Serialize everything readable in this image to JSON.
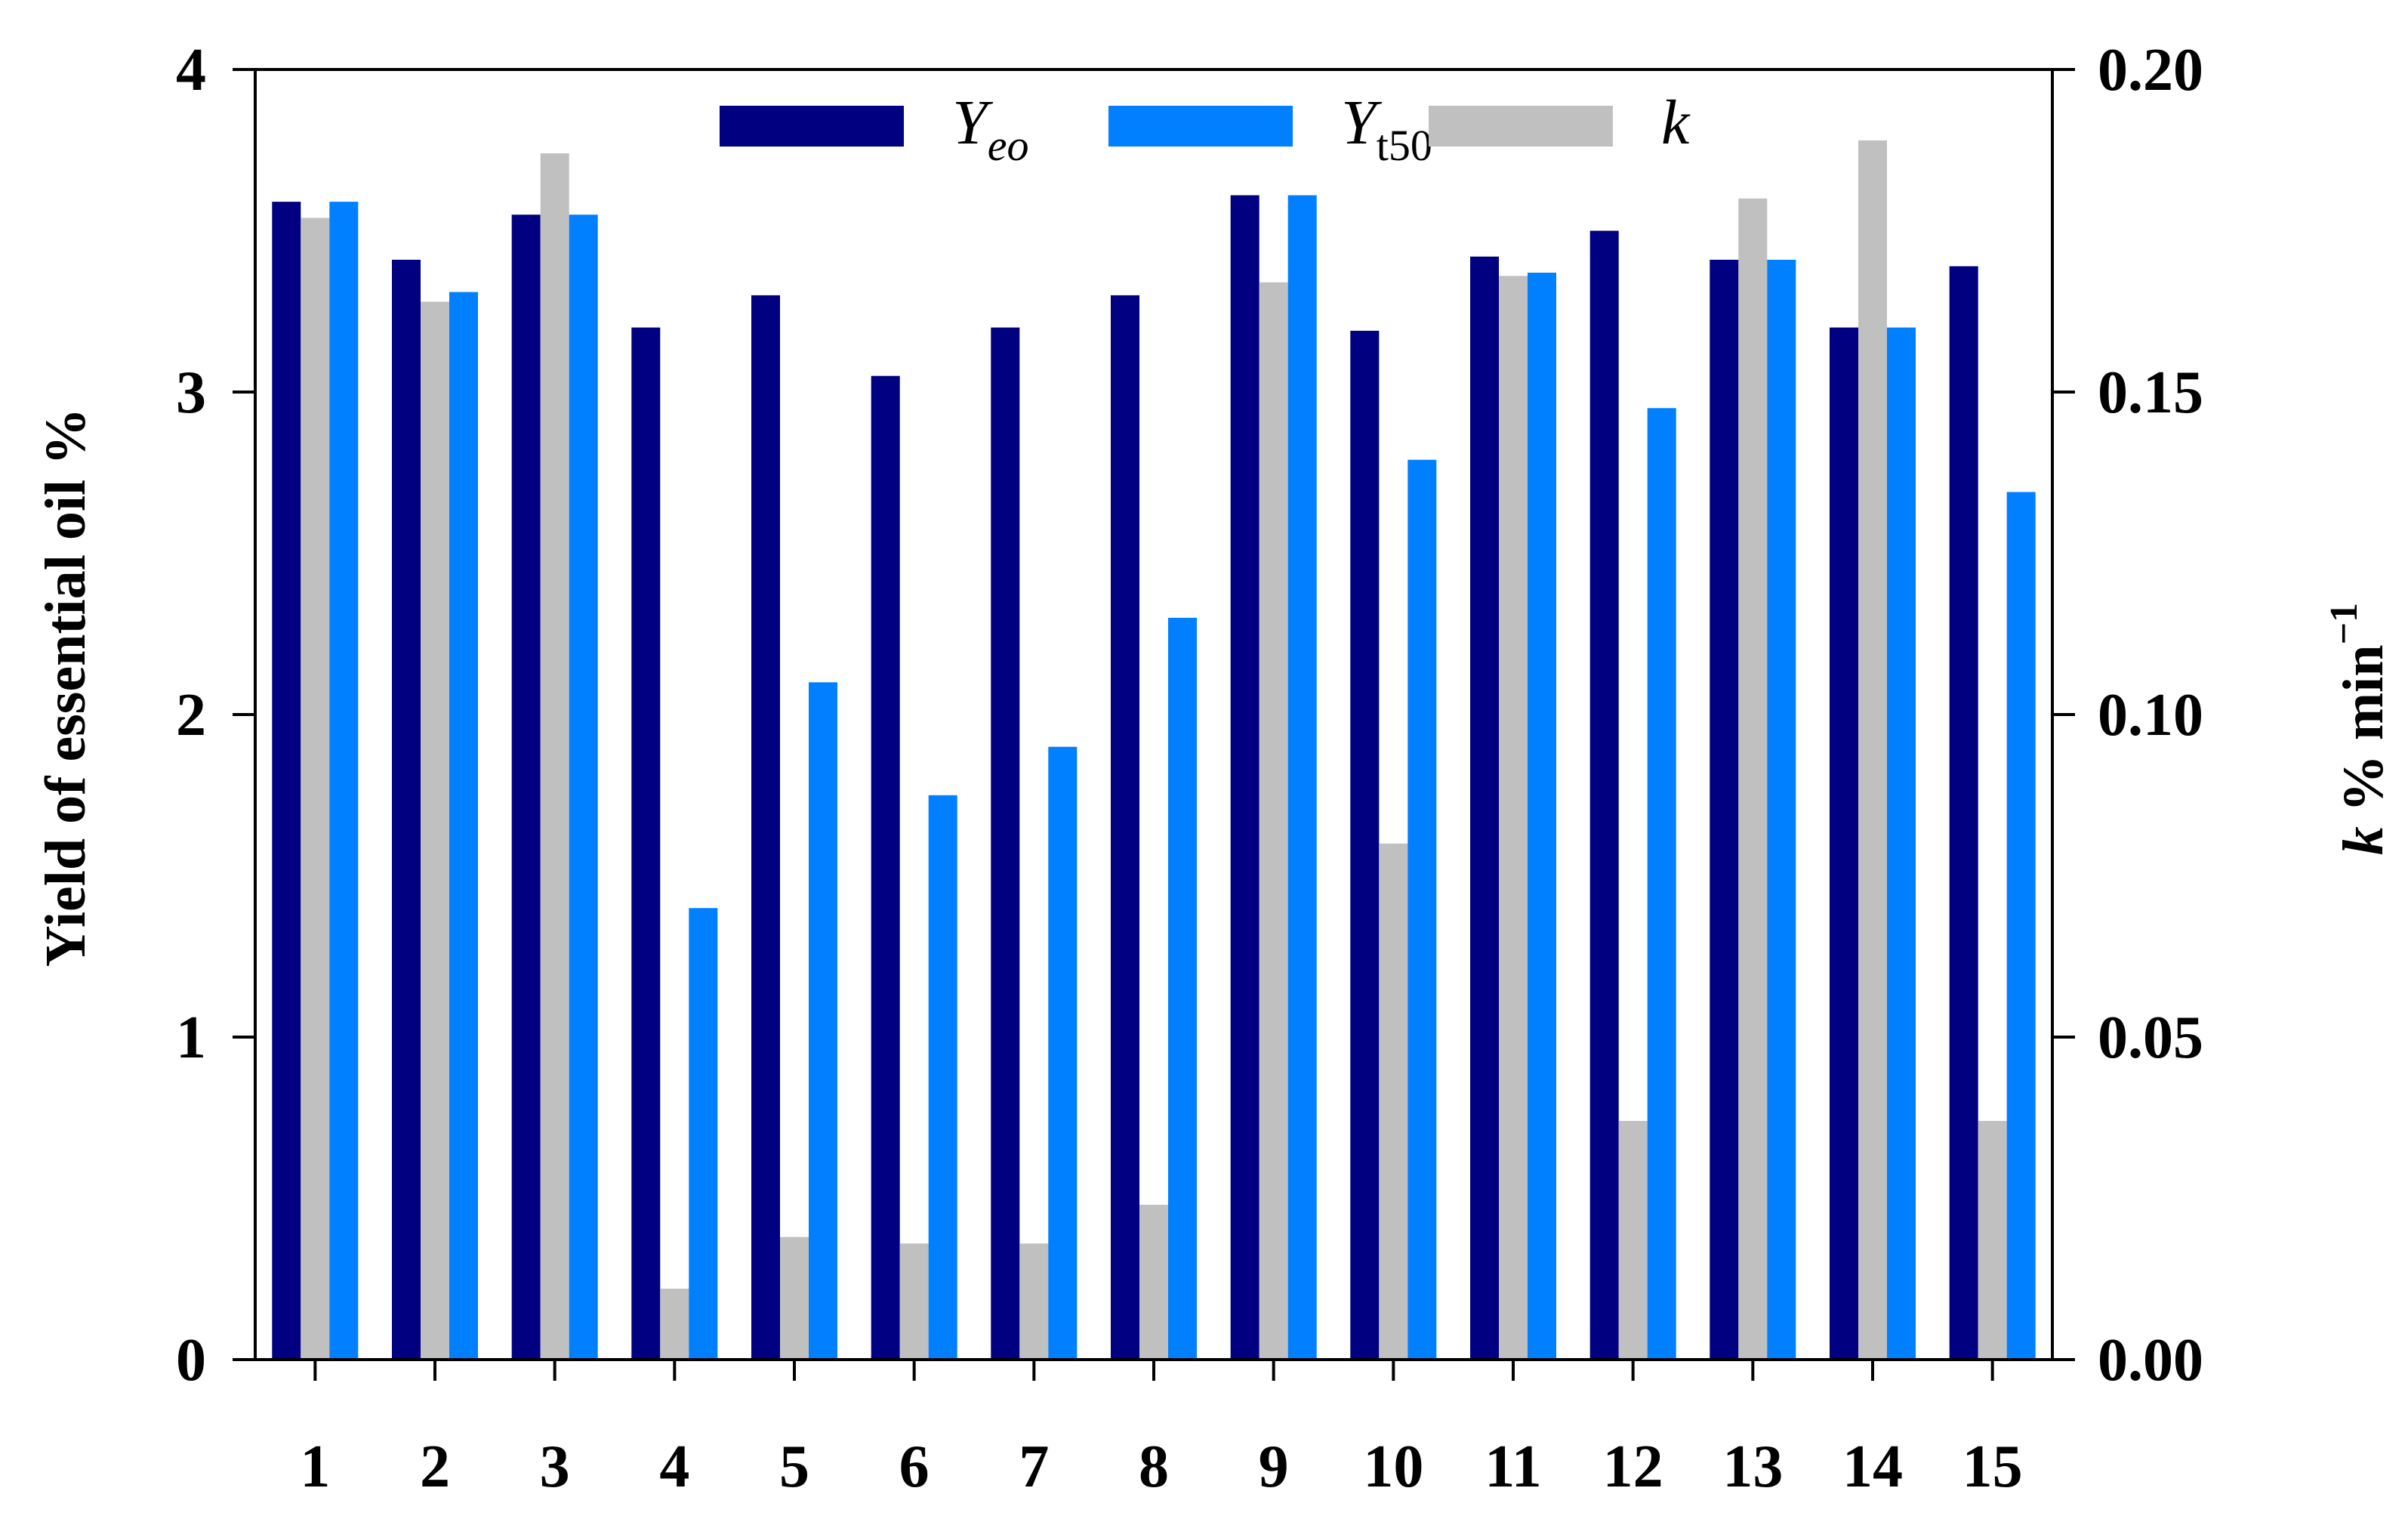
{
  "chart_data": {
    "type": "bar",
    "categories": [
      "1",
      "2",
      "3",
      "4",
      "5",
      "6",
      "7",
      "8",
      "9",
      "10",
      "11",
      "12",
      "13",
      "14",
      "15"
    ],
    "series": [
      {
        "name": "Y_eo",
        "name_main": "Y",
        "name_sub": "eo",
        "axis": "left",
        "color": "#000080",
        "values": [
          3.59,
          3.41,
          3.55,
          3.2,
          3.3,
          3.05,
          3.2,
          3.3,
          3.61,
          3.19,
          3.42,
          3.5,
          3.41,
          3.2,
          3.39
        ]
      },
      {
        "name": "k",
        "name_main": "k",
        "name_sub": "",
        "axis": "right",
        "color": "#C0C0C0",
        "values": [
          0.177,
          0.164,
          0.187,
          0.011,
          0.019,
          0.018,
          0.018,
          0.024,
          0.167,
          0.08,
          0.168,
          0.037,
          0.18,
          0.189,
          0.037
        ]
      },
      {
        "name": "Y_t50",
        "name_main": "Y",
        "name_sub": "t50",
        "axis": "left",
        "color": "#0080FF",
        "values": [
          3.59,
          3.31,
          3.55,
          1.4,
          2.1,
          1.75,
          1.9,
          2.3,
          3.61,
          2.79,
          3.37,
          2.95,
          3.41,
          3.2,
          2.69
        ]
      }
    ],
    "legend_order": [
      0,
      2,
      1
    ],
    "ylabel": "Yield of essential oil %",
    "y2label_main": "k",
    "y2label_rest": " % min",
    "y2label_sup": "−1",
    "ylim": [
      0,
      4
    ],
    "y2lim": [
      0,
      0.2
    ],
    "yticks": [
      "0",
      "1",
      "2",
      "3",
      "4"
    ],
    "y2ticks": [
      "0.00",
      "0.05",
      "0.10",
      "0.15",
      "0.20"
    ],
    "grid": false,
    "legend_position": "top-center"
  }
}
